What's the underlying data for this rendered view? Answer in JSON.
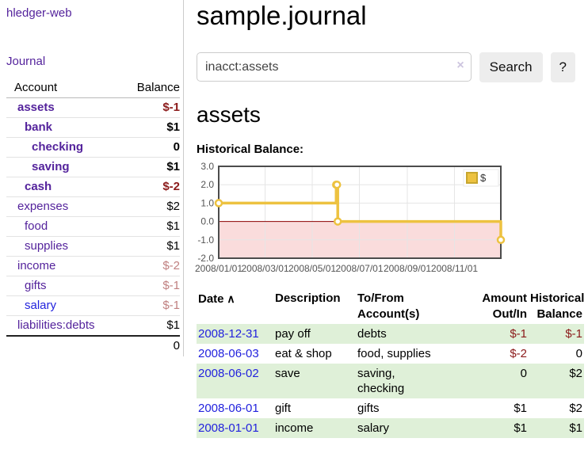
{
  "sidebar": {
    "app_link": "hledger-web",
    "journal_link": "Journal",
    "accounts_header": {
      "account": "Account",
      "balance": "Balance"
    },
    "accounts": [
      {
        "name": "assets",
        "depth": 0,
        "bold": true,
        "balance": "$-1"
      },
      {
        "name": "bank",
        "depth": 1,
        "bold": true,
        "balance": "$1"
      },
      {
        "name": "checking",
        "depth": 2,
        "bold": true,
        "balance": "0"
      },
      {
        "name": "saving",
        "depth": 2,
        "bold": true,
        "balance": "$1"
      },
      {
        "name": "cash",
        "depth": 1,
        "bold": true,
        "balance": "$-2"
      },
      {
        "name": "expenses",
        "depth": 0,
        "bold": false,
        "balance": "$2"
      },
      {
        "name": "food",
        "depth": 1,
        "bold": false,
        "balance": "$1"
      },
      {
        "name": "supplies",
        "depth": 1,
        "bold": false,
        "balance": "$1"
      },
      {
        "name": "income",
        "depth": 0,
        "bold": false,
        "balance": "$-2"
      },
      {
        "name": "gifts",
        "depth": 1,
        "bold": false,
        "balance": "$-1"
      },
      {
        "name": "salary",
        "depth": 1,
        "bold": false,
        "balance": "$-1",
        "link_state": "unvisited"
      },
      {
        "name": "liabilities:debts",
        "depth": 0,
        "bold": false,
        "balance": "$1"
      }
    ],
    "total": "0"
  },
  "header": {
    "title": "sample.journal"
  },
  "search": {
    "query": "inacct:assets",
    "clear_icon": "×",
    "button": "Search",
    "help_button": "?"
  },
  "account_page": {
    "heading": "assets",
    "chart_label": "Historical Balance:"
  },
  "chart_data": {
    "type": "line",
    "step": true,
    "title": "Historical Balance:",
    "series": [
      {
        "name": "$",
        "color": "#edc240",
        "points": [
          [
            "2008-01-01",
            1
          ],
          [
            "2008-06-01",
            2
          ],
          [
            "2008-06-02",
            2
          ],
          [
            "2008-06-03",
            0
          ],
          [
            "2008-12-31",
            -1
          ]
        ]
      }
    ],
    "x_range": [
      "2008-01-01",
      "2008-12-31"
    ],
    "x_ticks": [
      "2008/01/01",
      "2008/03/01",
      "2008/05/01",
      "2008/07/01",
      "2008/09/01",
      "2008/11/01"
    ],
    "y_ticks": [
      "3.0",
      "2.0",
      "1.0",
      "0.0",
      "-1.0",
      "-2.0"
    ],
    "ylim": [
      -2,
      3
    ],
    "grid": true,
    "negative_region_color": "#fadcdc",
    "zero_line_color": "#8b0000",
    "legend": {
      "label": "$",
      "swatch_color": "#edc240",
      "position": "top-right"
    }
  },
  "register": {
    "columns": [
      {
        "label": "Date",
        "sort_icon": "∧"
      },
      {
        "label": "Description"
      },
      {
        "label": "To/From\nAccount(s)"
      },
      {
        "label": "Amount\nOut/In",
        "align": "right"
      },
      {
        "label": "Historical\nBalance",
        "align": "right"
      }
    ],
    "rows": [
      {
        "date": "2008-12-31",
        "description": "pay off",
        "accounts": "debts",
        "amount": "$-1",
        "balance": "$-1"
      },
      {
        "date": "2008-06-03",
        "description": "eat & shop",
        "accounts": "food, supplies",
        "amount": "$-2",
        "balance": "0"
      },
      {
        "date": "2008-06-02",
        "description": "save",
        "accounts": "saving,\nchecking",
        "amount": "0",
        "balance": "$2"
      },
      {
        "date": "2008-06-01",
        "description": "gift",
        "accounts": "gifts",
        "amount": "$1",
        "balance": "$2"
      },
      {
        "date": "2008-01-01",
        "description": "income",
        "accounts": "salary",
        "amount": "$1",
        "balance": "$1"
      }
    ]
  }
}
